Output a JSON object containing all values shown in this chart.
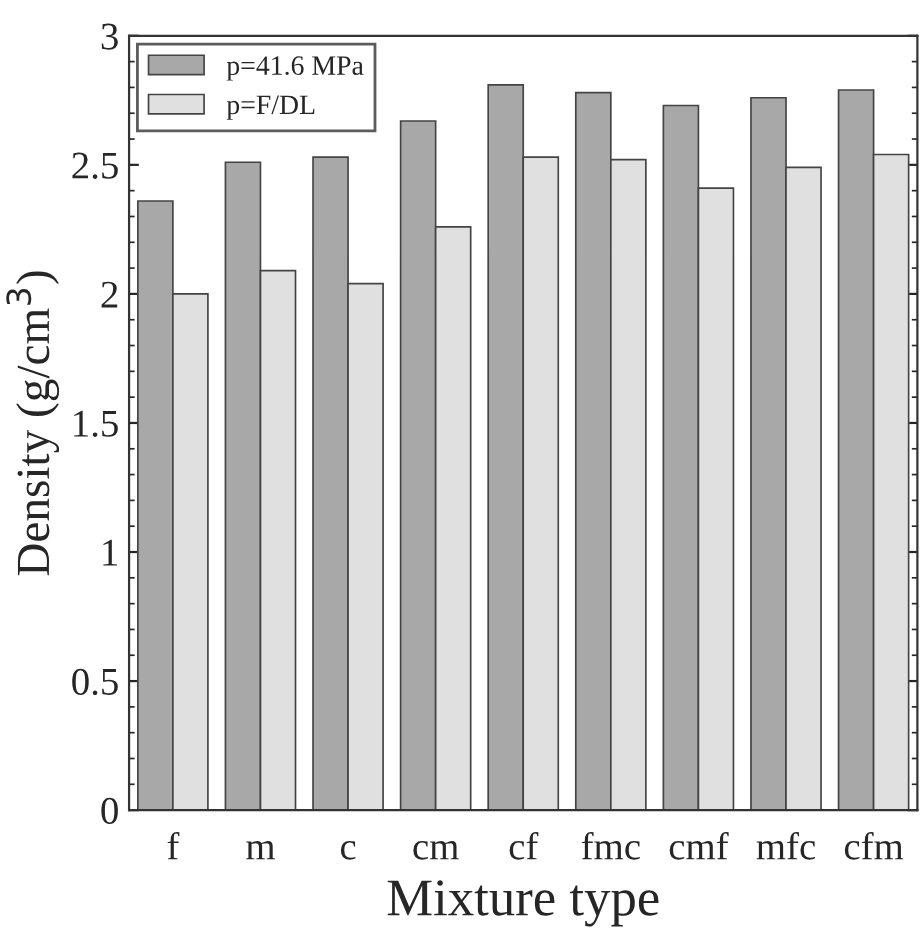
{
  "chart_data": {
    "type": "bar",
    "xlabel": "Mixture type",
    "ylabel": "Density (g/cm$^{3}$)",
    "categories": [
      "f",
      "m",
      "c",
      "cm",
      "cf",
      "fmc",
      "cmf",
      "mfc",
      "cfm"
    ],
    "series": [
      {
        "name": "p=41.6 MPa",
        "color": "#a8a8a8",
        "values": [
          2.36,
          2.51,
          2.53,
          2.67,
          2.81,
          2.78,
          2.73,
          2.76,
          2.79
        ]
      },
      {
        "name": "p=F/DL",
        "color": "#e0e0e0",
        "values": [
          2.0,
          2.09,
          2.04,
          2.26,
          2.53,
          2.52,
          2.41,
          2.49,
          2.54
        ]
      }
    ],
    "ylim": [
      0,
      3
    ],
    "yticks": [
      0,
      0.5,
      1,
      1.5,
      2,
      2.5,
      3
    ],
    "grid": false,
    "legend": "top left"
  }
}
